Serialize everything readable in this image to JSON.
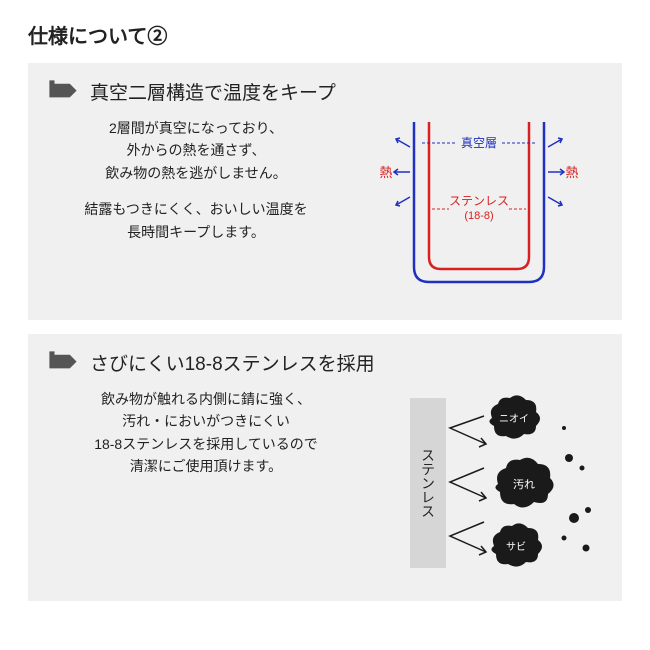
{
  "page_title": "仕様について②",
  "section1": {
    "title": "真空二層構造で温度をキープ",
    "para1": "2層間が真空になっており、\n外からの熱を通さず、\n飲み物の熱を逃がしません。",
    "para2": "結露もつきにくく、おいしい温度を\n長時間キープします。",
    "diagram": {
      "vacuum_label": "真空層",
      "stainless_label_line1": "ステンレス",
      "stainless_label_line2": "(18-8)",
      "heat_label": "熱",
      "outer_color": "#2030c0",
      "inner_color": "#d82020",
      "vacuum_label_color": "#2030c0",
      "stainless_label_color": "#d82020",
      "heat_label_color": "#d82020",
      "arrow_color": "#2030c0",
      "bg_color": "#f0f0f0"
    }
  },
  "section2": {
    "title": "さびにくい18-8ステンレスを採用",
    "para1": "飲み物が触れる内側に錆に強く、\n汚れ・においがつきにくい\n18-8ステンレスを採用しているので\n清潔にご使用頂けます。",
    "diagram": {
      "bar_label": "ステンレス",
      "blob1": "ニオイ",
      "blob2": "汚れ",
      "blob3": "サビ",
      "bar_bg": "#d6d6d6",
      "blob_color": "#1a1a1a",
      "particle_color": "#1a1a1a",
      "bg_color": "#f0f0f0"
    }
  },
  "colors": {
    "section_bg": "#f0f0f0",
    "icon_color": "#555555"
  }
}
